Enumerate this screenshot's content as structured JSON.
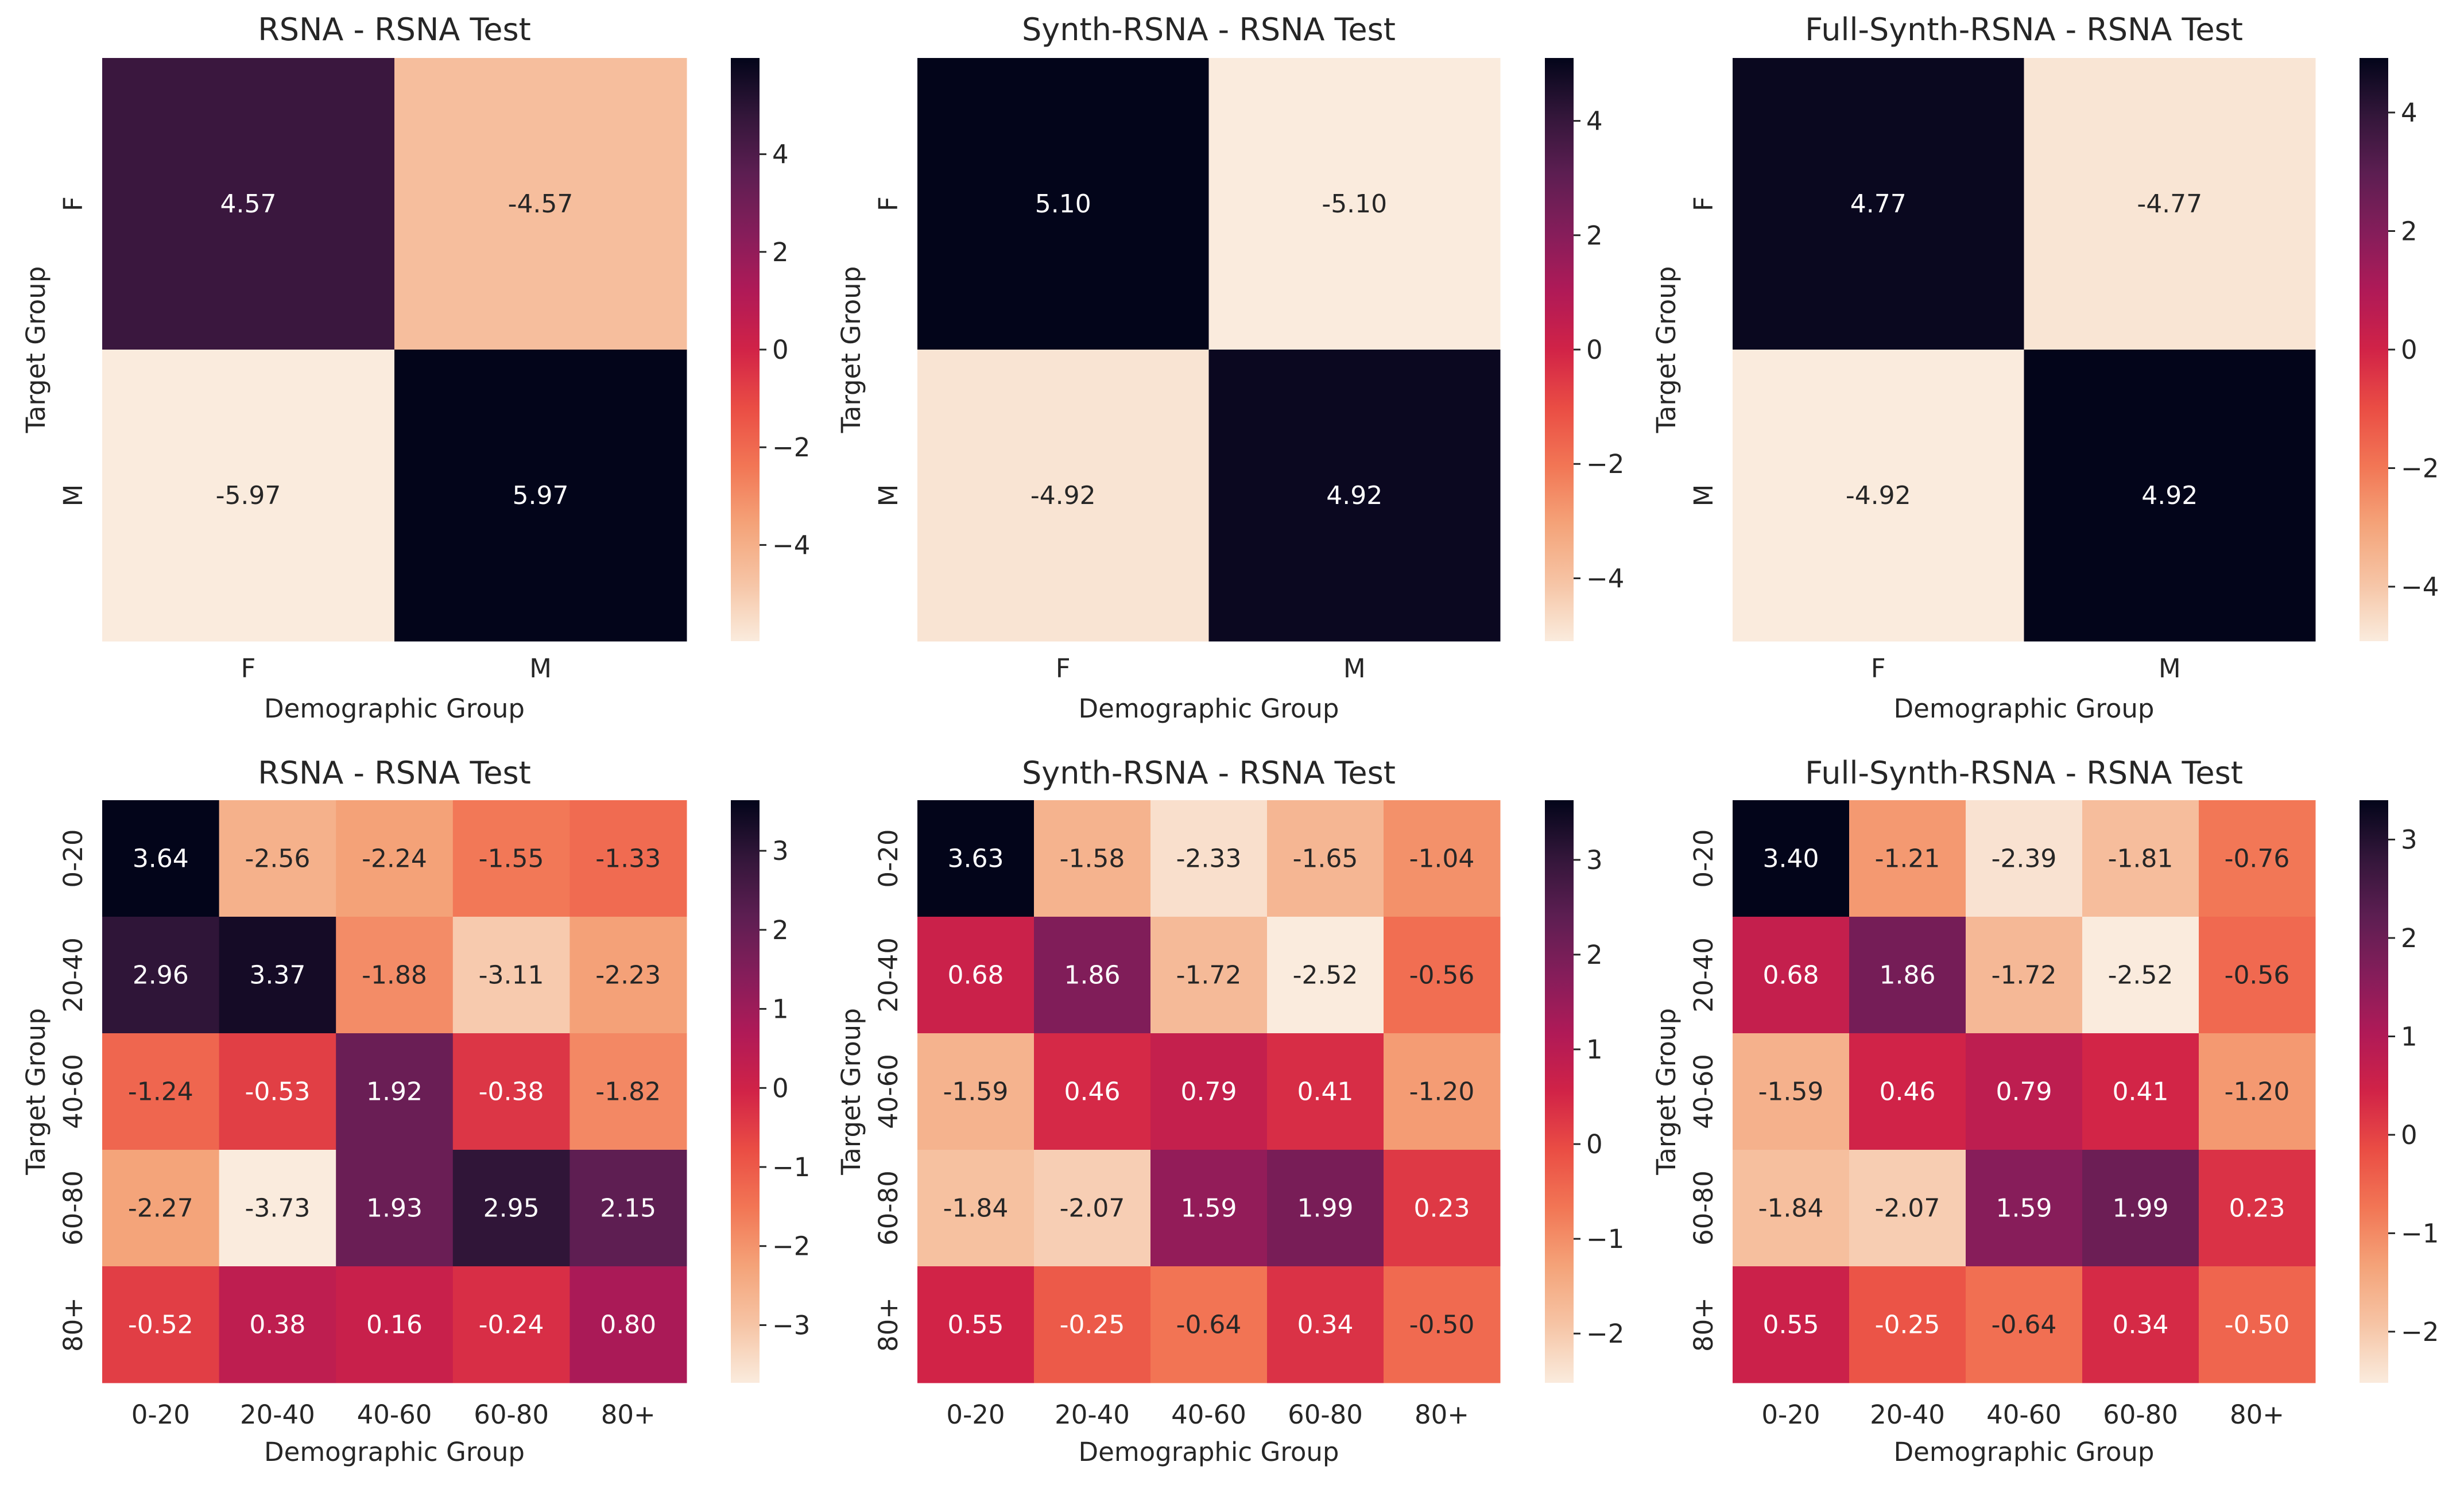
{
  "chart_data": [
    {
      "type": "heatmap",
      "title": "RSNA - RSNA Test",
      "xlabel": "Demographic Group",
      "ylabel": "Target Group",
      "x_categories": [
        "F",
        "M"
      ],
      "y_categories": [
        "F",
        "M"
      ],
      "values": [
        [
          4.57,
          -4.57
        ],
        [
          -5.97,
          5.97
        ]
      ],
      "labels": [
        [
          "4.57",
          "-4.57"
        ],
        [
          "-5.97",
          "5.97"
        ]
      ],
      "vmin": -5.97,
      "vmax": 5.97,
      "colorbar_ticks": [
        4,
        2,
        0,
        -2,
        -4
      ],
      "colorbar_tick_labels": [
        "4",
        "2",
        "0",
        "−2",
        "−4"
      ]
    },
    {
      "type": "heatmap",
      "title": "Synth-RSNA - RSNA Test",
      "xlabel": "Demographic Group",
      "ylabel": "Target Group",
      "x_categories": [
        "F",
        "M"
      ],
      "y_categories": [
        "F",
        "M"
      ],
      "values": [
        [
          5.1,
          -5.1
        ],
        [
          -4.92,
          4.92
        ]
      ],
      "labels": [
        [
          "5.10",
          "-5.10"
        ],
        [
          "-4.92",
          "4.92"
        ]
      ],
      "vmin": -5.1,
      "vmax": 5.1,
      "colorbar_ticks": [
        4,
        2,
        0,
        -2,
        -4
      ],
      "colorbar_tick_labels": [
        "4",
        "2",
        "0",
        "−2",
        "−4"
      ]
    },
    {
      "type": "heatmap",
      "title": "Full-Synth-RSNA - RSNA Test",
      "xlabel": "Demographic Group",
      "ylabel": "Target Group",
      "x_categories": [
        "F",
        "M"
      ],
      "y_categories": [
        "F",
        "M"
      ],
      "values": [
        [
          4.77,
          -4.77
        ],
        [
          -4.92,
          4.92
        ]
      ],
      "labels": [
        [
          "4.77",
          "-4.77"
        ],
        [
          "-4.92",
          "4.92"
        ]
      ],
      "vmin": -4.92,
      "vmax": 4.92,
      "colorbar_ticks": [
        4,
        2,
        0,
        -2,
        -4
      ],
      "colorbar_tick_labels": [
        "4",
        "2",
        "0",
        "−2",
        "−4"
      ]
    },
    {
      "type": "heatmap",
      "title": "RSNA - RSNA Test",
      "xlabel": "Demographic Group",
      "ylabel": "Target Group",
      "x_categories": [
        "0-20",
        "20-40",
        "40-60",
        "60-80",
        "80+"
      ],
      "y_categories": [
        "0-20",
        "20-40",
        "40-60",
        "60-80",
        "80+"
      ],
      "values": [
        [
          3.64,
          -2.56,
          -2.24,
          -1.55,
          -1.33
        ],
        [
          2.96,
          3.37,
          -1.88,
          -3.11,
          -2.23
        ],
        [
          -1.24,
          -0.53,
          1.92,
          -0.38,
          -1.82
        ],
        [
          -2.27,
          -3.73,
          1.93,
          2.95,
          2.15
        ],
        [
          -0.52,
          0.38,
          0.16,
          -0.24,
          0.8
        ]
      ],
      "labels": [
        [
          "3.64",
          "-2.56",
          "-2.24",
          "-1.55",
          "-1.33"
        ],
        [
          "2.96",
          "3.37",
          "-1.88",
          "-3.11",
          "-2.23"
        ],
        [
          "-1.24",
          "-0.53",
          "1.92",
          "-0.38",
          "-1.82"
        ],
        [
          "-2.27",
          "-3.73",
          "1.93",
          "2.95",
          "2.15"
        ],
        [
          "-0.52",
          "0.38",
          "0.16",
          "-0.24",
          "0.80"
        ]
      ],
      "vmin": -3.73,
      "vmax": 3.64,
      "colorbar_ticks": [
        3,
        2,
        1,
        0,
        -1,
        -2,
        -3
      ],
      "colorbar_tick_labels": [
        "3",
        "2",
        "1",
        "0",
        "−1",
        "−2",
        "−3"
      ]
    },
    {
      "type": "heatmap",
      "title": "Synth-RSNA - RSNA Test",
      "xlabel": "Demographic Group",
      "ylabel": "Target Group",
      "x_categories": [
        "0-20",
        "20-40",
        "40-60",
        "60-80",
        "80+"
      ],
      "y_categories": [
        "0-20",
        "20-40",
        "40-60",
        "60-80",
        "80+"
      ],
      "values": [
        [
          3.63,
          -1.58,
          -2.33,
          -1.65,
          -1.04
        ],
        [
          0.68,
          1.86,
          -1.72,
          -2.52,
          -0.56
        ],
        [
          -1.59,
          0.46,
          0.79,
          0.41,
          -1.2
        ],
        [
          -1.84,
          -2.07,
          1.59,
          1.99,
          0.23
        ],
        [
          0.55,
          -0.25,
          -0.64,
          0.34,
          -0.5
        ]
      ],
      "labels": [
        [
          "3.63",
          "-1.58",
          "-2.33",
          "-1.65",
          "-1.04"
        ],
        [
          "0.68",
          "1.86",
          "-1.72",
          "-2.52",
          "-0.56"
        ],
        [
          "-1.59",
          "0.46",
          "0.79",
          "0.41",
          "-1.20"
        ],
        [
          "-1.84",
          "-2.07",
          "1.59",
          "1.99",
          "0.23"
        ],
        [
          "0.55",
          "-0.25",
          "-0.64",
          "0.34",
          "-0.50"
        ]
      ],
      "vmin": -2.52,
      "vmax": 3.63,
      "colorbar_ticks": [
        3,
        2,
        1,
        0,
        -1,
        -2
      ],
      "colorbar_tick_labels": [
        "3",
        "2",
        "1",
        "0",
        "−1",
        "−2"
      ]
    },
    {
      "type": "heatmap",
      "title": "Full-Synth-RSNA - RSNA Test",
      "xlabel": "Demographic Group",
      "ylabel": "Target Group",
      "x_categories": [
        "0-20",
        "20-40",
        "40-60",
        "60-80",
        "80+"
      ],
      "y_categories": [
        "0-20",
        "20-40",
        "40-60",
        "60-80",
        "80+"
      ],
      "values": [
        [
          3.4,
          -1.21,
          -2.39,
          -1.81,
          -0.76
        ],
        [
          0.68,
          1.86,
          -1.72,
          -2.52,
          -0.56
        ],
        [
          -1.59,
          0.46,
          0.79,
          0.41,
          -1.2
        ],
        [
          -1.84,
          -2.07,
          1.59,
          1.99,
          0.23
        ],
        [
          0.55,
          -0.25,
          -0.64,
          0.34,
          -0.5
        ]
      ],
      "labels": [
        [
          "3.40",
          "-1.21",
          "-2.39",
          "-1.81",
          "-0.76"
        ],
        [
          "0.68",
          "1.86",
          "-1.72",
          "-2.52",
          "-0.56"
        ],
        [
          "-1.59",
          "0.46",
          "0.79",
          "0.41",
          "-1.20"
        ],
        [
          "-1.84",
          "-2.07",
          "1.59",
          "1.99",
          "0.23"
        ],
        [
          "0.55",
          "-0.25",
          "-0.64",
          "0.34",
          "-0.50"
        ]
      ],
      "vmin": -2.52,
      "vmax": 3.4,
      "colorbar_ticks": [
        3,
        2,
        1,
        0,
        -1,
        -2
      ],
      "colorbar_tick_labels": [
        "3",
        "2",
        "1",
        "0",
        "−1",
        "−2"
      ]
    }
  ]
}
